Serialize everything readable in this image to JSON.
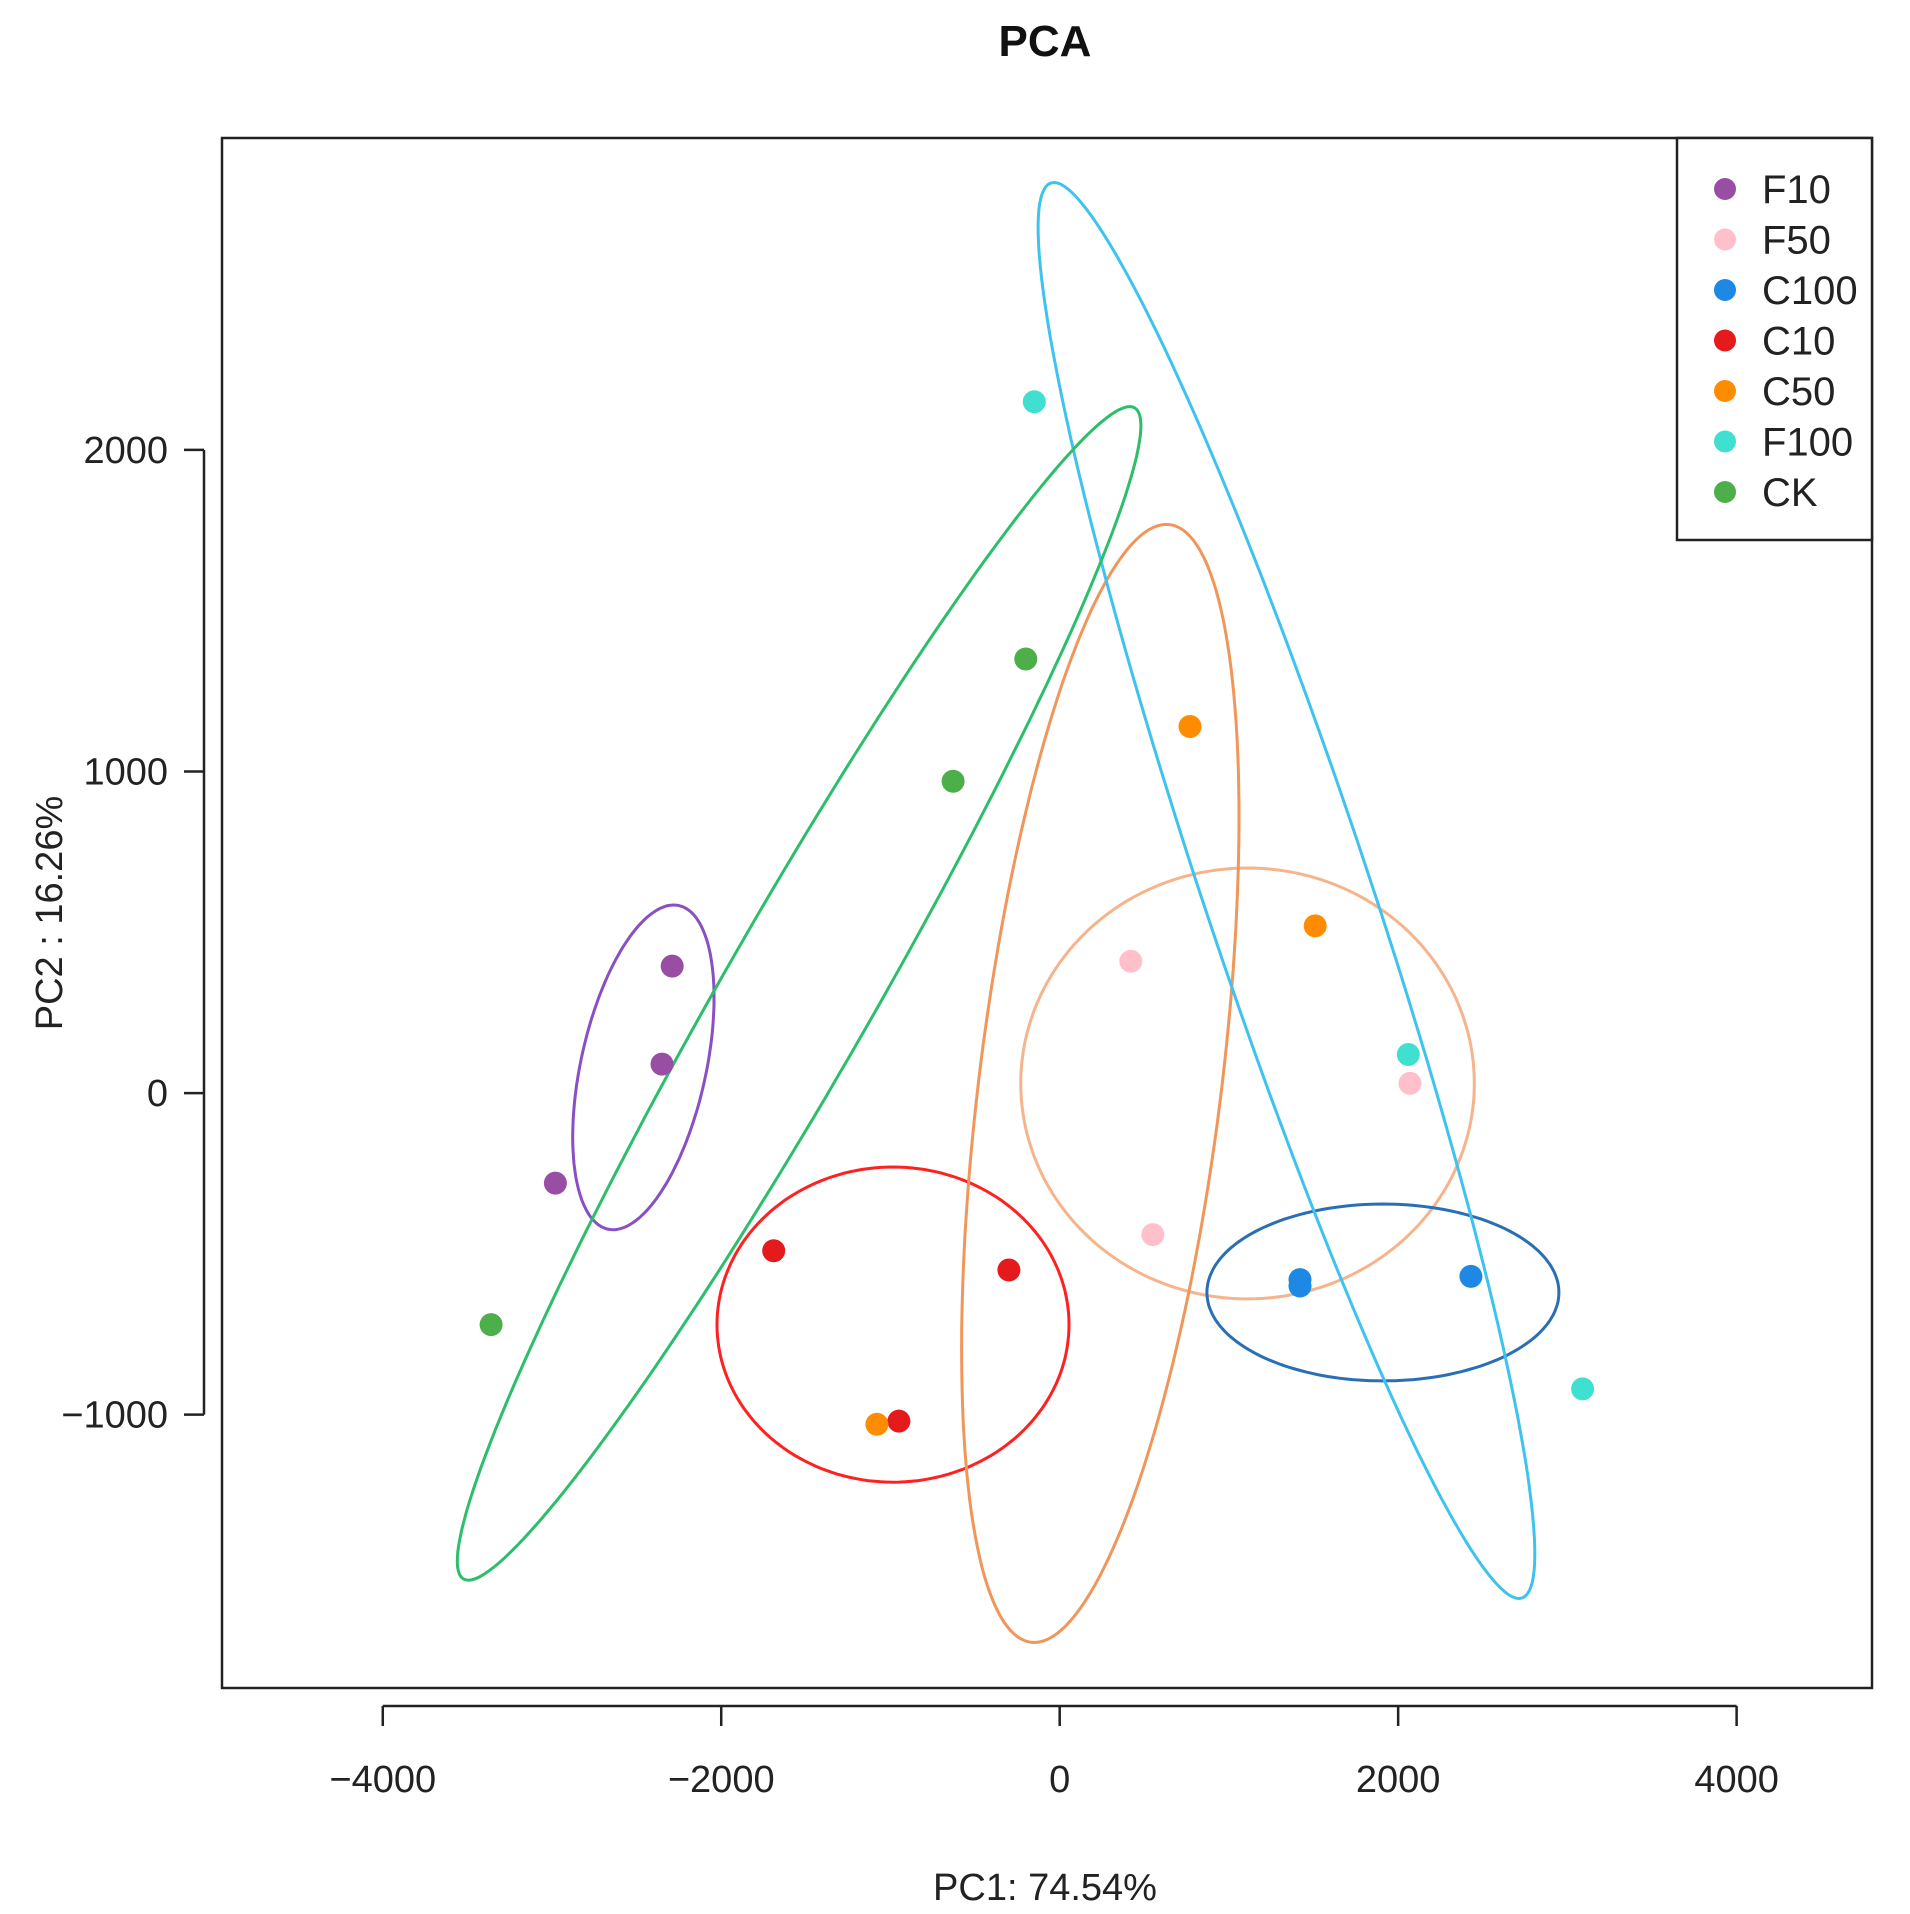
{
  "chart_data": {
    "type": "scatter",
    "title": "PCA",
    "xlabel": "PC1: 74.54%",
    "ylabel": "PC2 :  16.26%",
    "xlim": [
      -4950,
      4800
    ],
    "ylim": [
      -1850,
      2970
    ],
    "xticks": [
      -4000,
      -2000,
      0,
      2000,
      4000
    ],
    "yticks": [
      -1000,
      0,
      1000,
      2000
    ],
    "grid": false,
    "legend_position": "top-right",
    "series": [
      {
        "name": "F10",
        "color": "#984EA3",
        "points": [
          [
            -2290,
            395
          ],
          [
            -2350,
            90
          ],
          [
            -2980,
            -280
          ]
        ],
        "ellipse": {
          "cx": -2460,
          "cy": 80,
          "rx": 560,
          "ry": 340,
          "angle": 57,
          "color": "#8A4FC2"
        }
      },
      {
        "name": "F50",
        "color": "#FFC0CB",
        "points": [
          [
            420,
            410
          ],
          [
            550,
            -440
          ],
          [
            2070,
            30
          ]
        ],
        "ellipse": {
          "cx": 1110,
          "cy": 30,
          "rx": 1340,
          "ry": 670,
          "angle": 0,
          "color": "#F5B48C"
        }
      },
      {
        "name": "C100",
        "color": "#1E88E5",
        "points": [
          [
            1420,
            -580
          ],
          [
            1420,
            -600
          ],
          [
            2430,
            -570
          ]
        ],
        "ellipse": {
          "cx": 1910,
          "cy": -620,
          "rx": 1040,
          "ry": 275,
          "angle": 0,
          "color": "#2A6FB5"
        }
      },
      {
        "name": "C10",
        "color": "#E41A1C",
        "points": [
          [
            -1690,
            -490
          ],
          [
            -300,
            -550
          ],
          [
            -950,
            -1020
          ]
        ],
        "ellipse": {
          "cx": -985,
          "cy": -720,
          "rx": 1040,
          "ry": 490,
          "angle": 0,
          "color": "#FF2020"
        }
      },
      {
        "name": "C50",
        "color": "#FF8C00",
        "points": [
          [
            770,
            1140
          ],
          [
            1510,
            520
          ],
          [
            -1080,
            -1030
          ]
        ],
        "ellipse": {
          "cx": 240,
          "cy": 30,
          "rx": 1790,
          "ry": 700,
          "angle": 75,
          "color": "#F0965A"
        }
      },
      {
        "name": "F100",
        "color": "#40E0D0",
        "points": [
          [
            -150,
            2150
          ],
          [
            2060,
            120
          ],
          [
            3090,
            -920
          ]
        ],
        "ellipse": {
          "cx": 1340,
          "cy": 630,
          "rx": 2610,
          "ry": 435,
          "angle": -57,
          "color": "#3EC3EE"
        }
      },
      {
        "name": "CK",
        "color": "#4DAF4A",
        "points": [
          [
            -200,
            1350
          ],
          [
            -630,
            970
          ],
          [
            -3360,
            -720
          ]
        ],
        "ellipse": {
          "cx": -1540,
          "cy": 310,
          "rx": 2700,
          "ry": 345,
          "angle": 42,
          "color": "#2DBE6C"
        }
      }
    ]
  }
}
